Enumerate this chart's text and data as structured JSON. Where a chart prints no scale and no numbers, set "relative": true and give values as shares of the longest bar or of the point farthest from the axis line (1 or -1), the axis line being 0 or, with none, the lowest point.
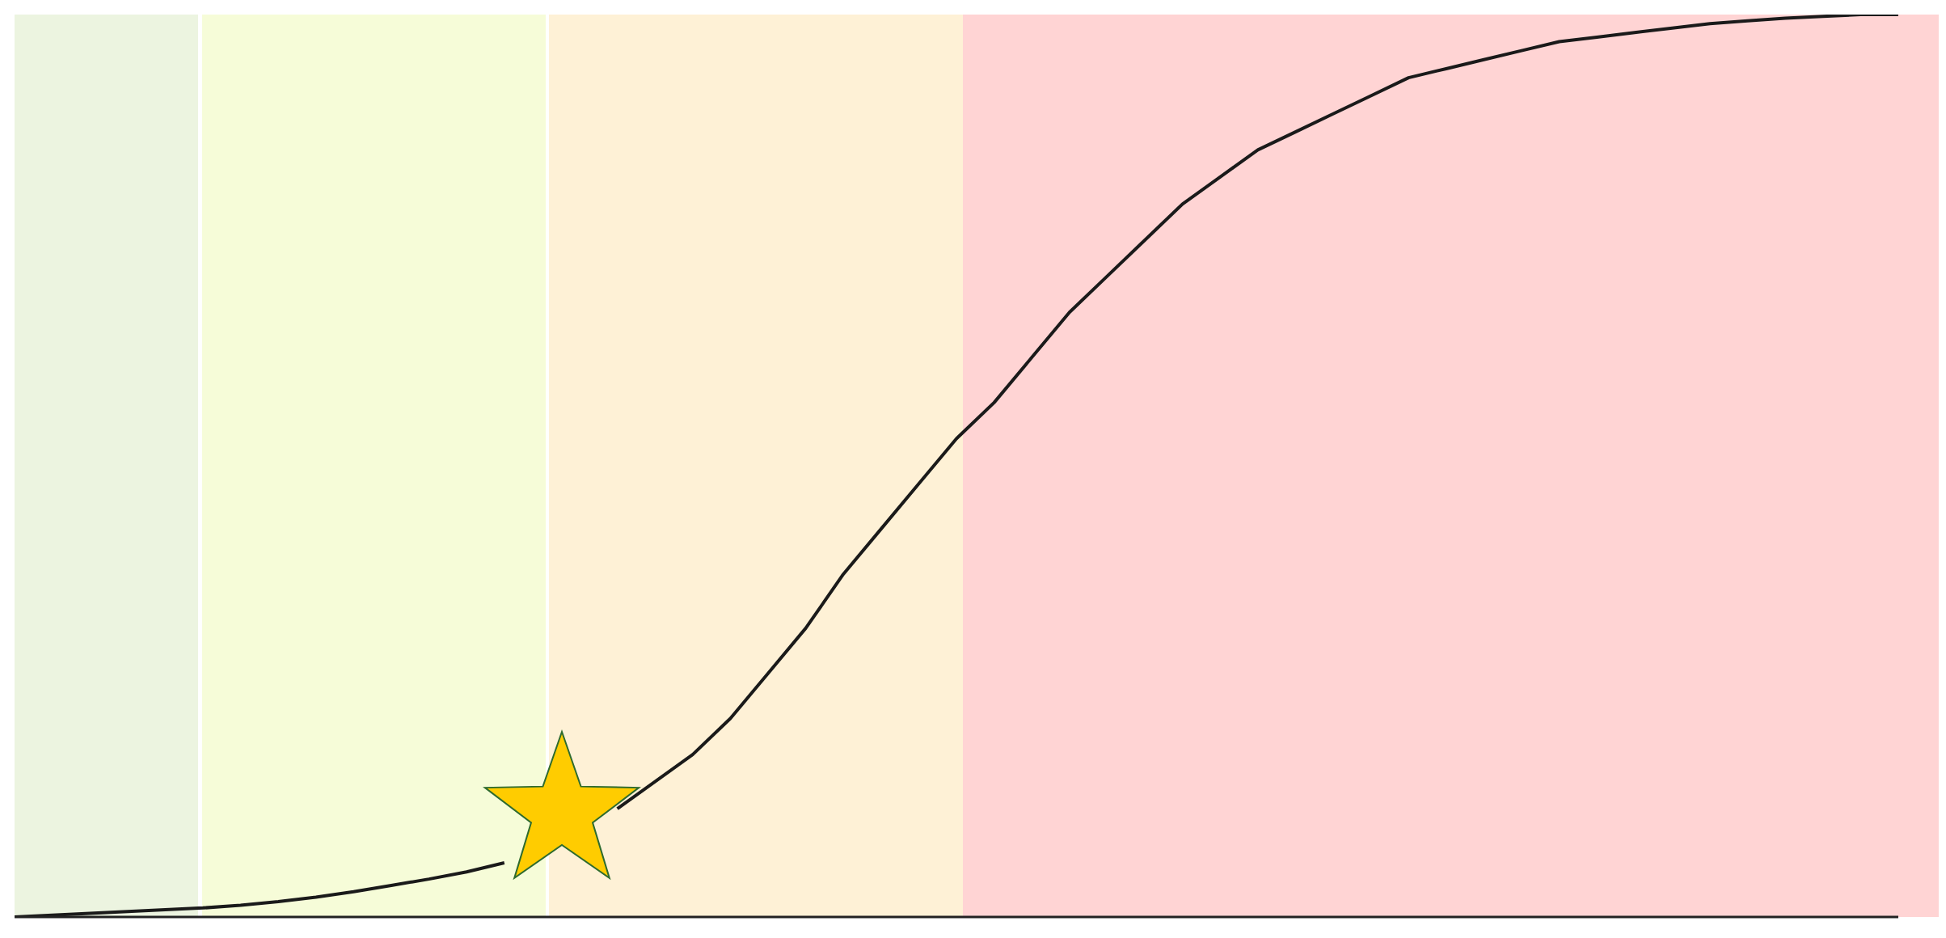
{
  "chart_data": {
    "type": "line",
    "relative": true,
    "legend": false,
    "categories": [
      null,
      null,
      null,
      null,
      null,
      null,
      null,
      null,
      null,
      null,
      null,
      null,
      null,
      null,
      null,
      null,
      null,
      null,
      null,
      null,
      null,
      null,
      null,
      null,
      null,
      null,
      null,
      null,
      null,
      null,
      null,
      null,
      null,
      null,
      null,
      null,
      null,
      null,
      null,
      null,
      null,
      null,
      null,
      null,
      null,
      null,
      null,
      null,
      null,
      null,
      null
    ],
    "series": [
      {
        "color": "#1a1a1a",
        "values": [
          0,
          0.002,
          0.004,
          0.006,
          0.008,
          0.01,
          0.013,
          0.017,
          0.022,
          0.028,
          0.035,
          0.042,
          0.05,
          0.06,
          null,
          null,
          0.12,
          0.15,
          0.18,
          0.22,
          0.27,
          0.32,
          0.38,
          0.43,
          0.48,
          0.53,
          0.57,
          0.62,
          0.67,
          0.71,
          0.75,
          0.79,
          0.82,
          0.85,
          0.87,
          0.89,
          0.91,
          0.93,
          0.94,
          0.95,
          0.96,
          0.97,
          0.975,
          0.98,
          0.985,
          0.99,
          0.993,
          0.996,
          0.998,
          1,
          1
        ]
      }
    ]
  }
}
